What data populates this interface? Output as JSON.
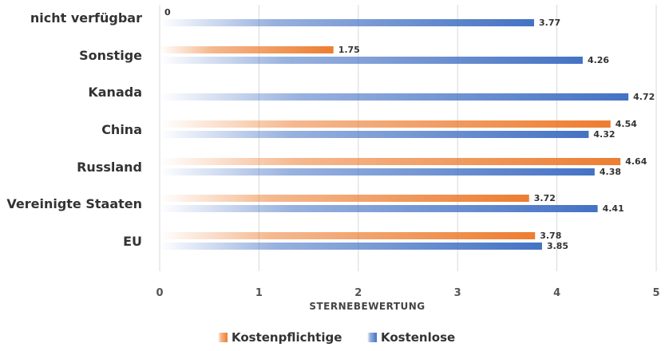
{
  "chart_data": {
    "type": "bar",
    "orientation": "horizontal",
    "categories": [
      "nicht verfügbar",
      "Sonstige",
      "Kanada",
      "China",
      "Russland",
      "Vereinigte Staaten",
      "EU"
    ],
    "series": [
      {
        "name": "Kostenpflichtige",
        "color": "#ED7D31",
        "values": [
          0,
          1.75,
          null,
          4.54,
          4.64,
          3.72,
          3.78
        ],
        "labels": [
          "0",
          "1.75",
          "",
          "4.54",
          "4.64",
          "3.72",
          "3.78"
        ]
      },
      {
        "name": "Kostenlose",
        "color": "#4472C4",
        "values": [
          3.77,
          4.26,
          4.72,
          4.32,
          4.38,
          4.41,
          3.85
        ],
        "labels": [
          "3.77",
          "4.26",
          "4.72",
          "4.32",
          "4.38",
          "4.41",
          "3.85"
        ]
      }
    ],
    "xlabel": "STERNEBEWERTUNG",
    "ylabel": "",
    "xlim": [
      0,
      5
    ],
    "xticks": [
      "0",
      "1",
      "2",
      "3",
      "4",
      "5"
    ],
    "grid": true,
    "legend_position": "bottom"
  }
}
